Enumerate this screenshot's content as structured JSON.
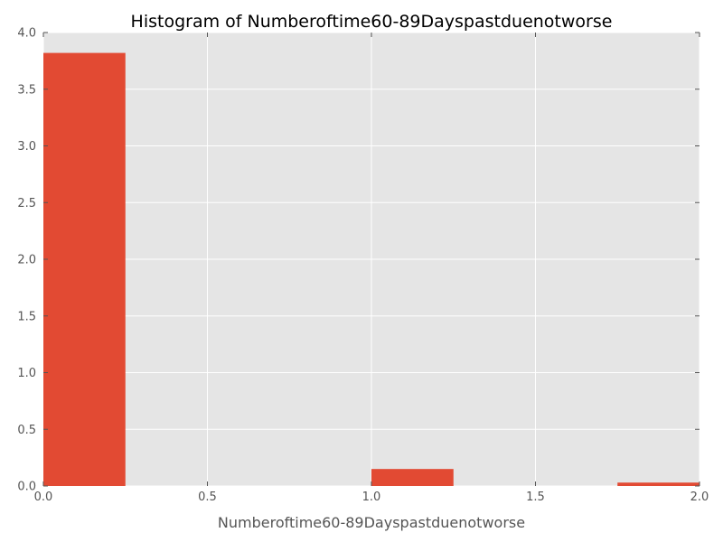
{
  "chart_data": {
    "type": "bar",
    "title": "Histogram of Numberoftime60-89Dayspastduenotworse",
    "xlabel": "Numberoftime60-89Dayspastduenotworse",
    "ylabel": "",
    "xlim": [
      0.0,
      2.0
    ],
    "ylim": [
      0.0,
      4.0
    ],
    "grid": true,
    "bin_edges": [
      0.0,
      0.25,
      0.5,
      0.75,
      1.0,
      1.25,
      1.5,
      1.75,
      2.0
    ],
    "values": [
      3.82,
      0.0,
      0.0,
      0.0,
      0.15,
      0.0,
      0.0,
      0.03
    ],
    "x_ticks": [
      "0.0",
      "0.5",
      "1.0",
      "1.5",
      "2.0"
    ],
    "y_ticks": [
      "0.0",
      "0.5",
      "1.0",
      "1.5",
      "2.0",
      "2.5",
      "3.0",
      "3.5",
      "4.0"
    ],
    "bar_color": "#E24A33",
    "background_color": "#E5E5E5",
    "grid_color": "#FFFFFF"
  }
}
